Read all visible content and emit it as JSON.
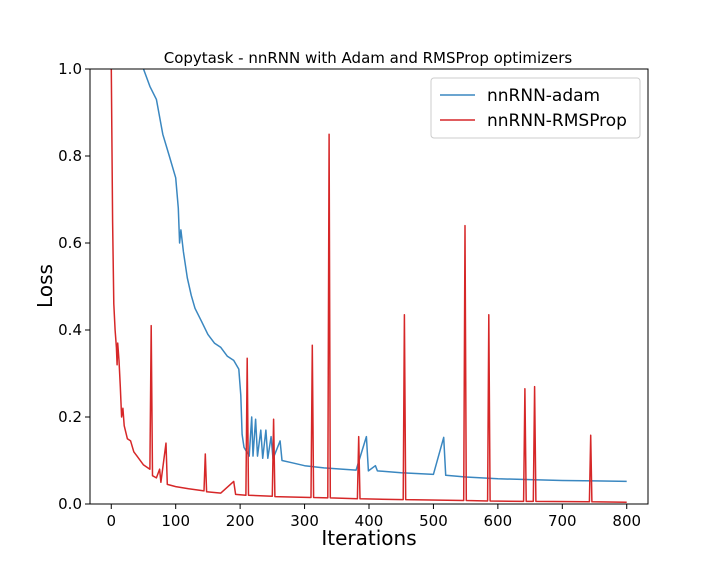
{
  "chart_data": {
    "type": "line",
    "title": "Copytask - nnRNN with Adam and RMSProp optimizers",
    "xlabel": "Iterations",
    "ylabel": "Loss",
    "xlim": [
      -33,
      833
    ],
    "ylim": [
      0,
      1.0
    ],
    "xticks": [
      0,
      100,
      200,
      300,
      400,
      500,
      600,
      700,
      800
    ],
    "yticks": [
      0.0,
      0.2,
      0.4,
      0.6,
      0.8,
      1.0
    ],
    "xtick_labels": [
      "0",
      "100",
      "200",
      "300",
      "400",
      "500",
      "600",
      "700",
      "800"
    ],
    "ytick_labels": [
      "0.0",
      "0.2",
      "0.4",
      "0.6",
      "0.8",
      "1.0"
    ],
    "grid": false,
    "legend_position": "top-right",
    "series": [
      {
        "name": "nnRNN-adam",
        "color": "#3a87c0",
        "points": [
          [
            50,
            1.0
          ],
          [
            60,
            0.96
          ],
          [
            70,
            0.93
          ],
          [
            80,
            0.85
          ],
          [
            90,
            0.8
          ],
          [
            100,
            0.75
          ],
          [
            104,
            0.68
          ],
          [
            106,
            0.6
          ],
          [
            108,
            0.63
          ],
          [
            112,
            0.58
          ],
          [
            118,
            0.52
          ],
          [
            124,
            0.48
          ],
          [
            130,
            0.45
          ],
          [
            140,
            0.42
          ],
          [
            150,
            0.39
          ],
          [
            160,
            0.37
          ],
          [
            170,
            0.36
          ],
          [
            180,
            0.34
          ],
          [
            190,
            0.33
          ],
          [
            198,
            0.31
          ],
          [
            201,
            0.25
          ],
          [
            203,
            0.16
          ],
          [
            206,
            0.13
          ],
          [
            210,
            0.12
          ],
          [
            214,
            0.11
          ],
          [
            218,
            0.2
          ],
          [
            220,
            0.11
          ],
          [
            224,
            0.195
          ],
          [
            227,
            0.11
          ],
          [
            232,
            0.17
          ],
          [
            235,
            0.105
          ],
          [
            240,
            0.17
          ],
          [
            243,
            0.105
          ],
          [
            248,
            0.155
          ],
          [
            251,
            0.104
          ],
          [
            262,
            0.145
          ],
          [
            265,
            0.1
          ],
          [
            280,
            0.095
          ],
          [
            300,
            0.088
          ],
          [
            330,
            0.083
          ],
          [
            360,
            0.08
          ],
          [
            380,
            0.078
          ],
          [
            396,
            0.155
          ],
          [
            399,
            0.076
          ],
          [
            410,
            0.088
          ],
          [
            413,
            0.076
          ],
          [
            450,
            0.072
          ],
          [
            500,
            0.068
          ],
          [
            516,
            0.153
          ],
          [
            519,
            0.066
          ],
          [
            550,
            0.062
          ],
          [
            600,
            0.058
          ],
          [
            650,
            0.056
          ],
          [
            700,
            0.054
          ],
          [
            750,
            0.053
          ],
          [
            800,
            0.052
          ]
        ]
      },
      {
        "name": "nnRNN-RMSProp",
        "color": "#d62728",
        "points": [
          [
            0,
            1.0
          ],
          [
            2,
            0.65
          ],
          [
            4,
            0.46
          ],
          [
            6,
            0.4
          ],
          [
            8,
            0.36
          ],
          [
            9,
            0.32
          ],
          [
            10,
            0.37
          ],
          [
            12,
            0.33
          ],
          [
            14,
            0.27
          ],
          [
            16,
            0.2
          ],
          [
            18,
            0.22
          ],
          [
            20,
            0.18
          ],
          [
            25,
            0.15
          ],
          [
            30,
            0.145
          ],
          [
            35,
            0.12
          ],
          [
            40,
            0.11
          ],
          [
            50,
            0.09
          ],
          [
            60,
            0.08
          ],
          [
            62,
            0.41
          ],
          [
            64,
            0.065
          ],
          [
            70,
            0.06
          ],
          [
            75,
            0.08
          ],
          [
            77,
            0.05
          ],
          [
            85,
            0.14
          ],
          [
            87,
            0.045
          ],
          [
            100,
            0.04
          ],
          [
            120,
            0.035
          ],
          [
            144,
            0.03
          ],
          [
            146,
            0.115
          ],
          [
            148,
            0.028
          ],
          [
            170,
            0.025
          ],
          [
            190,
            0.052
          ],
          [
            193,
            0.022
          ],
          [
            209,
            0.02
          ],
          [
            211,
            0.335
          ],
          [
            213,
            0.02
          ],
          [
            250,
            0.018
          ],
          [
            252,
            0.195
          ],
          [
            254,
            0.017
          ],
          [
            310,
            0.015
          ],
          [
            312,
            0.365
          ],
          [
            314,
            0.015
          ],
          [
            336,
            0.014
          ],
          [
            338,
            0.85
          ],
          [
            340,
            0.014
          ],
          [
            382,
            0.012
          ],
          [
            384,
            0.155
          ],
          [
            386,
            0.012
          ],
          [
            453,
            0.01
          ],
          [
            455,
            0.435
          ],
          [
            457,
            0.01
          ],
          [
            547,
            0.008
          ],
          [
            549,
            0.64
          ],
          [
            551,
            0.008
          ],
          [
            584,
            0.007
          ],
          [
            586,
            0.435
          ],
          [
            588,
            0.007
          ],
          [
            640,
            0.006
          ],
          [
            642,
            0.265
          ],
          [
            644,
            0.006
          ],
          [
            655,
            0.006
          ],
          [
            657,
            0.27
          ],
          [
            659,
            0.006
          ],
          [
            742,
            0.005
          ],
          [
            744,
            0.158
          ],
          [
            746,
            0.005
          ],
          [
            800,
            0.004
          ]
        ]
      }
    ]
  }
}
